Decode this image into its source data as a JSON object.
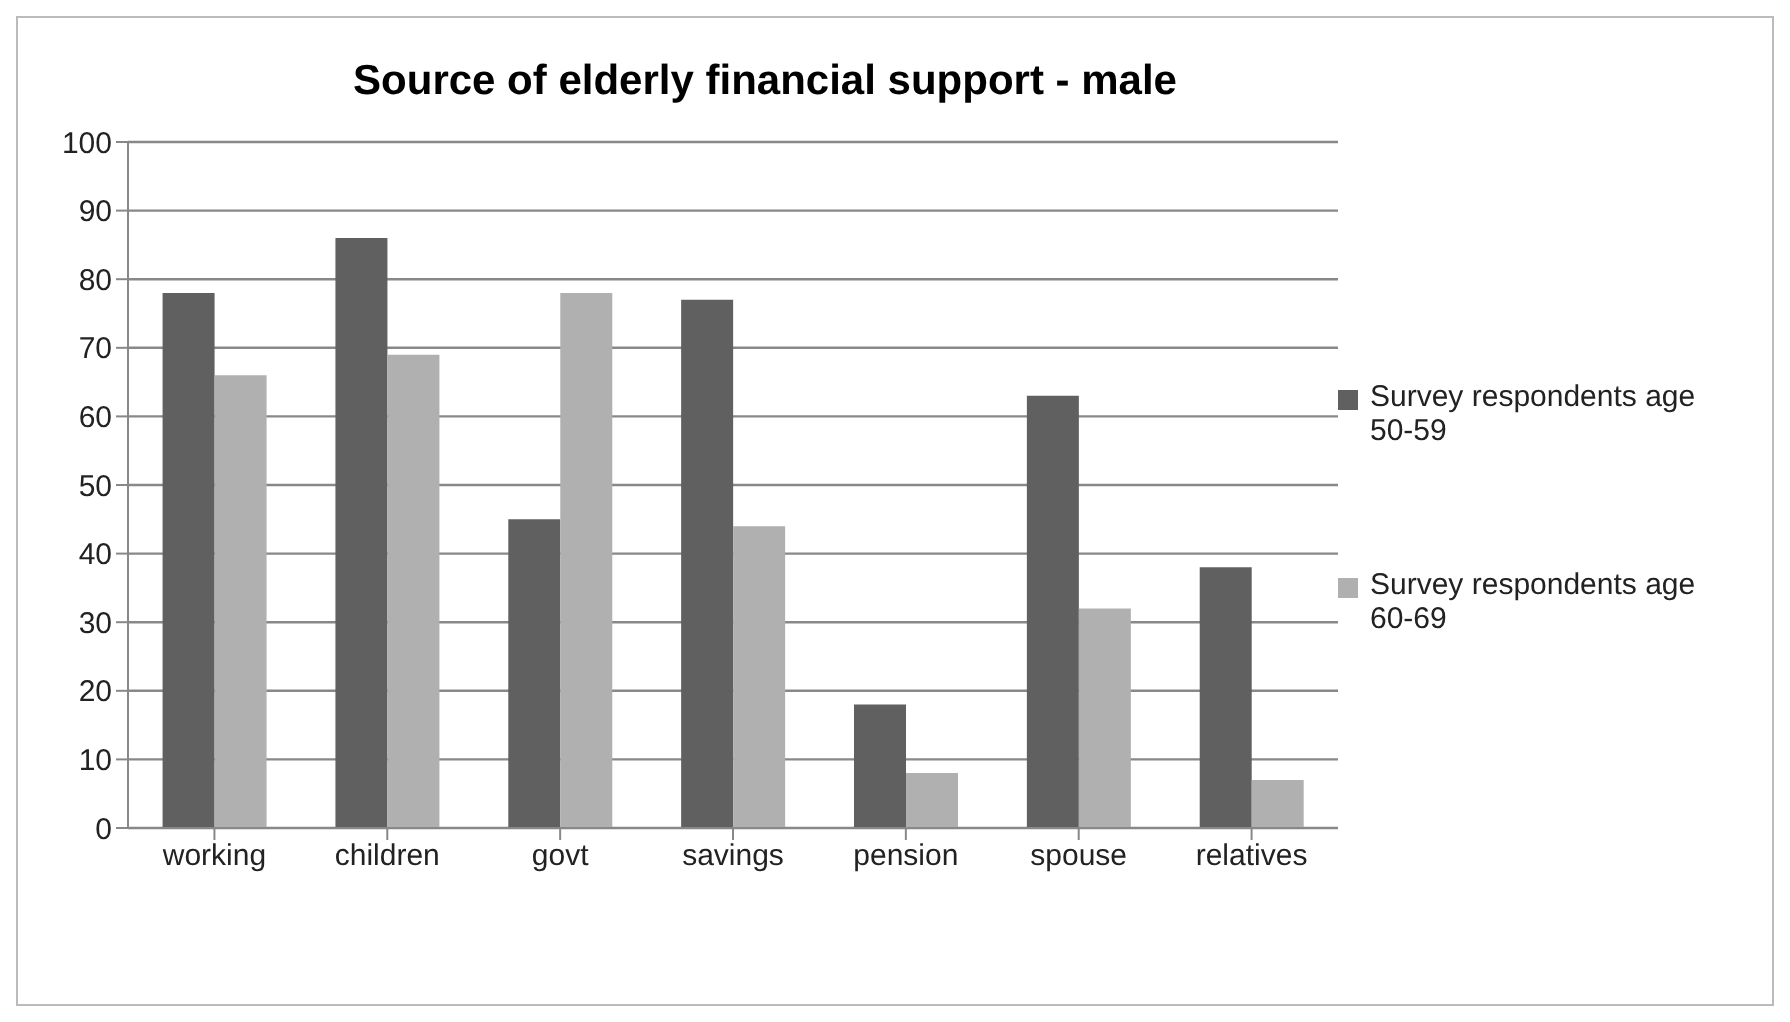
{
  "chart_data": {
    "type": "bar",
    "title": "Source of elderly financial support - male",
    "categories": [
      "working",
      "children",
      "govt",
      "savings",
      "pension",
      "spouse",
      "relatives"
    ],
    "series": [
      {
        "name": "Survey respondents age 50-59",
        "color": "#606060",
        "values": [
          78,
          86,
          45,
          77,
          18,
          63,
          38
        ]
      },
      {
        "name": "Survey respondents age 60-69",
        "color": "#b0b0b0",
        "values": [
          66,
          69,
          78,
          44,
          8,
          32,
          7
        ]
      }
    ],
    "ylim": [
      0,
      100
    ],
    "yticks": [
      0,
      10,
      20,
      30,
      40,
      50,
      60,
      70,
      80,
      90,
      100
    ],
    "grid": "y",
    "legend": "right"
  }
}
